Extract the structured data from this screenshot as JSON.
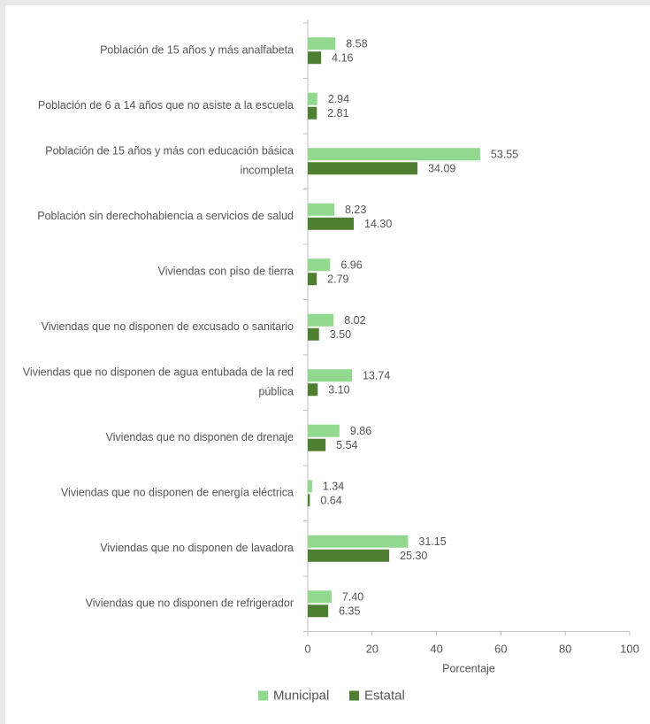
{
  "chart_data": {
    "type": "bar",
    "orientation": "horizontal",
    "categories": [
      [
        "Población de 15 años y más analfabeta"
      ],
      [
        "Población de 6 a 14 años que no asiste a la escuela"
      ],
      [
        "Población de 15 años y más con educación básica",
        "incompleta"
      ],
      [
        "Población sin derechohabiencia a servicios de salud"
      ],
      [
        "Viviendas con piso de tierra"
      ],
      [
        "Viviendas que no disponen de excusado o sanitario"
      ],
      [
        "Viviendas que no disponen de agua entubada de la red",
        "pública"
      ],
      [
        "Viviendas que no disponen de drenaje"
      ],
      [
        "Viviendas que no disponen de energía eléctrica"
      ],
      [
        "Viviendas que no disponen de lavadora"
      ],
      [
        "Viviendas que no disponen de refrigerador"
      ]
    ],
    "series": [
      {
        "name": "Municipal",
        "color": "#90d98e",
        "values": [
          8.58,
          2.94,
          53.55,
          8.23,
          6.96,
          8.02,
          13.74,
          9.86,
          1.34,
          31.15,
          7.4
        ],
        "labels": [
          "8.58",
          "2.94",
          "53.55",
          "8.23",
          "6.96",
          "8.02",
          "13.74",
          "9.86",
          "1.34",
          "31.15",
          "7.40"
        ]
      },
      {
        "name": "Estatal",
        "color": "#4e7f30",
        "values": [
          4.16,
          2.81,
          34.09,
          14.3,
          2.79,
          3.5,
          3.1,
          5.54,
          0.64,
          25.3,
          6.35
        ],
        "labels": [
          "4.16",
          "2.81",
          "34.09",
          "14.30",
          "2.79",
          "3.50",
          "3.10",
          "5.54",
          "0.64",
          "25.30",
          "6.35"
        ]
      }
    ],
    "xlabel": "Porcentaje",
    "xlim": [
      0,
      100
    ],
    "xticks": [
      0,
      20,
      40,
      60,
      80,
      100
    ],
    "grid": false,
    "legend_position": "bottom-center"
  }
}
